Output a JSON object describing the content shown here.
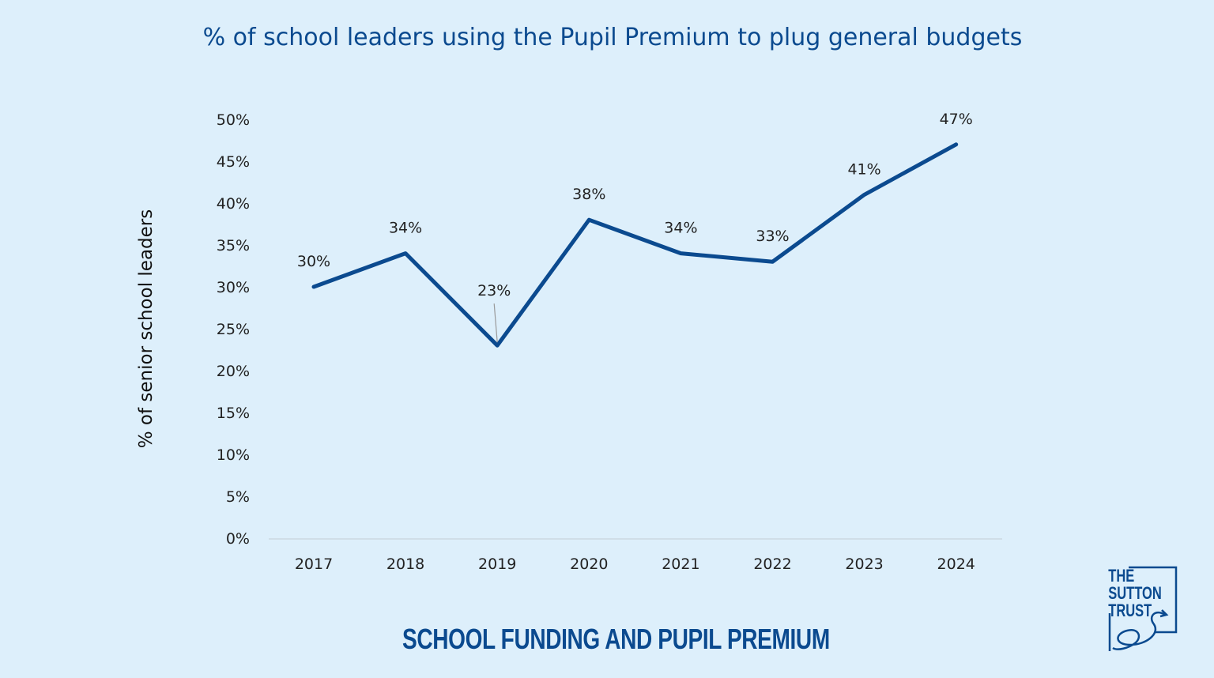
{
  "chart_data": {
    "type": "line",
    "title": "% of school leaders using the Pupil Premium to plug general budgets",
    "xlabel": "",
    "ylabel": "% of senior school leaders",
    "categories": [
      "2017",
      "2018",
      "2019",
      "2020",
      "2021",
      "2022",
      "2023",
      "2024"
    ],
    "values": [
      30,
      34,
      23,
      38,
      34,
      33,
      41,
      47
    ],
    "data_labels": [
      "30%",
      "34%",
      "23%",
      "38%",
      "34%",
      "33%",
      "41%",
      "47%"
    ],
    "ylim": [
      0,
      50
    ],
    "yticks": [
      "0%",
      "5%",
      "10%",
      "15%",
      "20%",
      "25%",
      "30%",
      "35%",
      "40%",
      "45%",
      "50%"
    ],
    "grid": false,
    "line_color": "#0b4a8f"
  },
  "footer": "SCHOOL FUNDING AND PUPIL PREMIUM",
  "logo": {
    "text": "THE SUTTON TRUST",
    "color": "#0b4a8f"
  },
  "background": "#ddeffb"
}
